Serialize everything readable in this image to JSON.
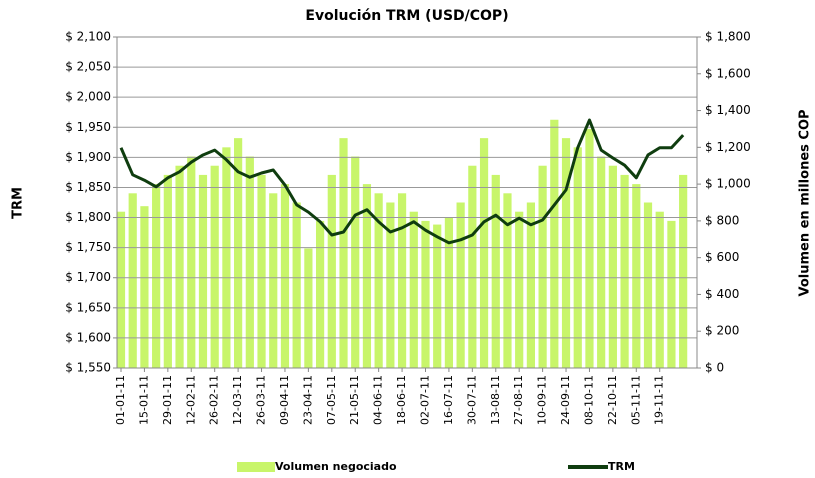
{
  "chart_data": {
    "type": "combo",
    "title": "Evolución TRM (USD/COP)",
    "y_label": "TRM",
    "y2_label": "Volumen  en  millones  COP",
    "categories": [
      "01-01-11",
      null,
      "15-01-11",
      null,
      "29-01-11",
      null,
      "12-02-11",
      null,
      "26-02-11",
      null,
      "12-03-11",
      null,
      "26-03-11",
      null,
      "09-04-11",
      null,
      "23-04-11",
      null,
      "07-05-11",
      null,
      "21-05-11",
      null,
      "04-06-11",
      null,
      "18-06-11",
      null,
      "02-07-11",
      null,
      "16-07-11",
      null,
      "30-07-11",
      null,
      "13-08-11",
      null,
      "27-08-11",
      null,
      "10-09-11",
      null,
      "24-09-11",
      null,
      "08-10-11",
      null,
      "22-10-11",
      null,
      "05-11-11",
      null,
      "19-11-11",
      null,
      null
    ],
    "series": [
      {
        "name": "Volumen negociado",
        "type": "bar",
        "axis": "y2",
        "color": "#c8f56a",
        "values": [
          850,
          950,
          880,
          1000,
          1050,
          1100,
          1150,
          1050,
          1100,
          1200,
          1250,
          1150,
          1050,
          950,
          1000,
          900,
          650,
          800,
          1050,
          1250,
          1150,
          1000,
          950,
          900,
          950,
          850,
          800,
          780,
          820,
          900,
          1100,
          1250,
          1050,
          950,
          850,
          900,
          1100,
          1350,
          1250,
          1200,
          1300,
          1150,
          1100,
          1050,
          1000,
          900,
          850,
          800,
          1050
        ]
      },
      {
        "name": "TRM",
        "type": "line",
        "axis": "y",
        "color": "#0f3d0f",
        "values": [
          1916,
          1871,
          1862,
          1851,
          1866,
          1876,
          1892,
          1904,
          1912,
          1896,
          1876,
          1867,
          1874,
          1879,
          1854,
          1821,
          1809,
          1793,
          1771,
          1776,
          1804,
          1813,
          1793,
          1776,
          1783,
          1793,
          1779,
          1768,
          1758,
          1763,
          1771,
          1793,
          1804,
          1788,
          1799,
          1788,
          1796,
          1821,
          1846,
          1916,
          1962,
          1912,
          1899,
          1887,
          1866,
          1904,
          1916,
          1916,
          1937
        ]
      }
    ],
    "ylim": [
      1550,
      2100
    ],
    "yticks": [
      {
        "value": 1550,
        "label": "$ 1,550"
      },
      {
        "value": 1600,
        "label": "$ 1,600"
      },
      {
        "value": 1650,
        "label": "$ 1,650"
      },
      {
        "value": 1700,
        "label": "$ 1,700"
      },
      {
        "value": 1750,
        "label": "$ 1,750"
      },
      {
        "value": 1800,
        "label": "$ 1,800"
      },
      {
        "value": 1850,
        "label": "$ 1,850"
      },
      {
        "value": 1900,
        "label": "$ 1,900"
      },
      {
        "value": 1950,
        "label": "$ 1,950"
      },
      {
        "value": 2000,
        "label": "$ 2,000"
      },
      {
        "value": 2050,
        "label": "$ 2,050"
      },
      {
        "value": 2100,
        "label": "$ 2,100"
      }
    ],
    "y2lim": [
      0,
      1800
    ],
    "y2ticks": [
      {
        "value": 0,
        "label": "$ 0"
      },
      {
        "value": 200,
        "label": "$ 200"
      },
      {
        "value": 400,
        "label": "$ 400"
      },
      {
        "value": 600,
        "label": "$ 600"
      },
      {
        "value": 800,
        "label": "$ 800"
      },
      {
        "value": 1000,
        "label": "$ 1,000"
      },
      {
        "value": 1200,
        "label": "$ 1,200"
      },
      {
        "value": 1400,
        "label": "$ 1,400"
      },
      {
        "value": 1600,
        "label": "$ 1,600"
      },
      {
        "value": 1800,
        "label": "$ 1,800"
      }
    ],
    "grid": true,
    "legend": "bottom"
  }
}
